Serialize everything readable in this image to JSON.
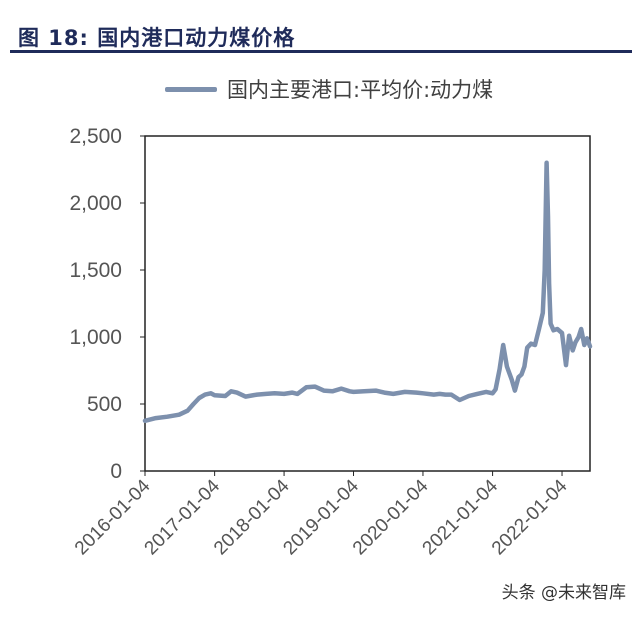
{
  "figure": {
    "title": "图  18:  国内港口动力煤价格"
  },
  "watermark": "头条 @未来智库",
  "chart_data": {
    "type": "line",
    "title": "",
    "xlabel": "",
    "ylabel": "",
    "ylim": [
      0,
      2500
    ],
    "y_ticks": [
      0,
      500,
      1000,
      1500,
      2000,
      2500
    ],
    "y_tick_labels": [
      "0",
      "500",
      "1,000",
      "1,500",
      "2,000",
      "2,500"
    ],
    "x_range": [
      "2016-01-04",
      "2022-05-31"
    ],
    "x_ticks": [
      "2016-01-04",
      "2017-01-04",
      "2018-01-04",
      "2019-01-04",
      "2020-01-04",
      "2021-01-04",
      "2022-01-04"
    ],
    "grid": false,
    "legend_position": "top",
    "series": [
      {
        "name": "国内主要港口:平均价:动力煤",
        "color": "#7d90ad",
        "x": [
          "2016-01-04",
          "2016-03-01",
          "2016-05-01",
          "2016-07-01",
          "2016-08-15",
          "2016-09-15",
          "2016-10-15",
          "2016-11-15",
          "2016-12-15",
          "2017-01-04",
          "2017-03-01",
          "2017-04-01",
          "2017-05-01",
          "2017-06-15",
          "2017-08-15",
          "2017-10-01",
          "2017-11-15",
          "2018-01-04",
          "2018-02-15",
          "2018-03-15",
          "2018-05-01",
          "2018-06-15",
          "2018-08-01",
          "2018-09-15",
          "2018-11-01",
          "2018-12-15",
          "2019-01-04",
          "2019-03-01",
          "2019-05-01",
          "2019-06-15",
          "2019-08-01",
          "2019-10-01",
          "2019-12-01",
          "2020-01-04",
          "2020-03-01",
          "2020-04-01",
          "2020-05-01",
          "2020-06-01",
          "2020-07-15",
          "2020-09-01",
          "2020-10-15",
          "2020-12-01",
          "2021-01-04",
          "2021-01-20",
          "2021-02-10",
          "2021-03-01",
          "2021-03-20",
          "2021-04-15",
          "2021-05-01",
          "2021-05-20",
          "2021-06-05",
          "2021-06-20",
          "2021-07-05",
          "2021-07-25",
          "2021-08-15",
          "2021-09-05",
          "2021-09-25",
          "2021-10-05",
          "2021-10-15",
          "2021-10-22",
          "2021-10-28",
          "2021-11-05",
          "2021-11-20",
          "2021-12-10",
          "2022-01-04",
          "2022-01-25",
          "2022-02-10",
          "2022-03-01",
          "2022-03-15",
          "2022-04-01",
          "2022-04-15",
          "2022-05-01",
          "2022-05-15",
          "2022-05-31"
        ],
        "y": [
          375,
          395,
          405,
          420,
          450,
          500,
          545,
          570,
          580,
          565,
          560,
          595,
          585,
          555,
          570,
          575,
          580,
          575,
          585,
          575,
          625,
          630,
          600,
          595,
          615,
          595,
          590,
          595,
          600,
          585,
          575,
          590,
          585,
          580,
          570,
          575,
          570,
          570,
          530,
          560,
          575,
          590,
          580,
          610,
          760,
          940,
          780,
          680,
          600,
          700,
          720,
          780,
          920,
          950,
          940,
          1060,
          1180,
          1500,
          2300,
          1900,
          1400,
          1100,
          1050,
          1060,
          1030,
          790,
          1010,
          900,
          960,
          1000,
          1060,
          940,
          990,
          930
        ]
      }
    ]
  }
}
